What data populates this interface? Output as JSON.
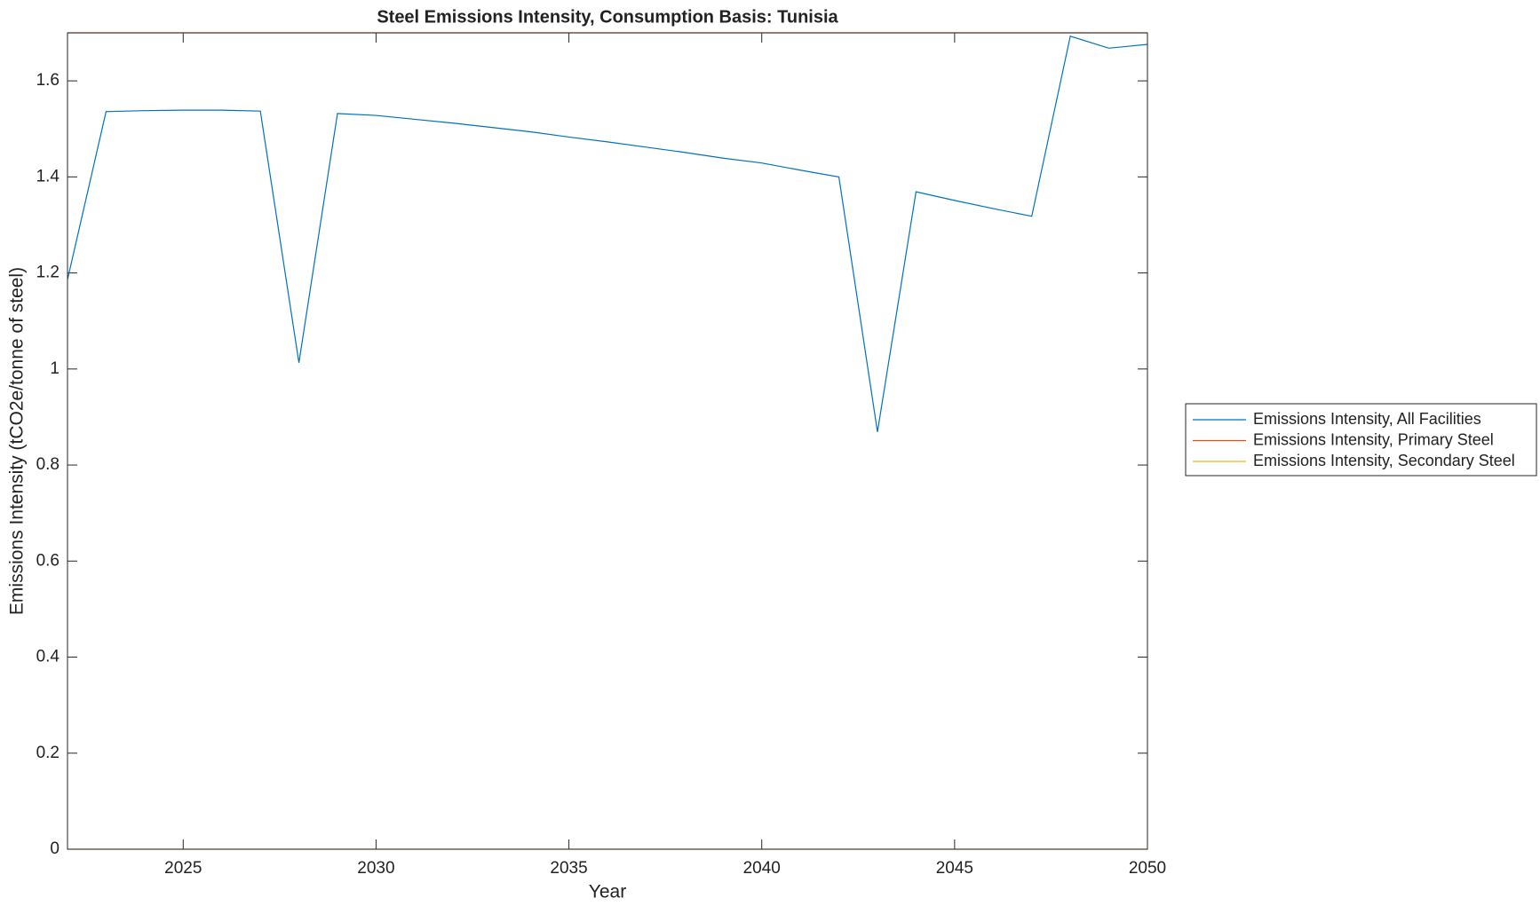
{
  "chart_data": {
    "type": "line",
    "title": "Steel Emissions Intensity, Consumption Basis: Tunisia",
    "xlabel": "Year",
    "ylabel": "Emissions Intensity (tCO2e/tonne of steel)",
    "x": [
      2022,
      2023,
      2024,
      2025,
      2026,
      2027,
      2028,
      2029,
      2030,
      2031,
      2032,
      2033,
      2034,
      2035,
      2036,
      2037,
      2038,
      2039,
      2040,
      2041,
      2042,
      2043,
      2044,
      2045,
      2046,
      2047,
      2048,
      2049,
      2050
    ],
    "series": [
      {
        "name": "Emissions Intensity, All Facilities",
        "color": "#0072bd",
        "values": [
          1.186,
          1.536,
          1.538,
          1.539,
          1.539,
          1.537,
          1.013,
          1.532,
          1.528,
          1.52,
          1.512,
          1.503,
          1.494,
          1.483,
          1.473,
          1.462,
          1.451,
          1.439,
          1.429,
          1.414,
          1.4,
          0.869,
          1.369,
          1.351,
          1.334,
          1.318,
          1.693,
          1.668,
          1.676
        ]
      },
      {
        "name": "Emissions Intensity, Primary Steel",
        "color": "#d95319",
        "values": [
          1.7,
          1.7,
          1.7,
          1.7,
          1.7,
          1.7,
          1.7,
          1.7,
          1.7,
          1.7,
          1.7,
          1.7,
          1.7,
          1.7,
          1.7,
          1.7,
          1.7,
          1.7,
          1.7,
          1.7,
          1.7,
          1.7,
          1.7,
          1.7,
          1.7,
          1.7,
          1.7,
          1.7,
          1.7
        ]
      },
      {
        "name": "Emissions Intensity, Secondary Steel",
        "color": "#edb120",
        "values": [
          0,
          0,
          0,
          0,
          0,
          0,
          0,
          0,
          0,
          0,
          0,
          0,
          0,
          0,
          0,
          0,
          0,
          0,
          0,
          0,
          0,
          0,
          0,
          0,
          0,
          0,
          0,
          0,
          0
        ]
      }
    ],
    "xlim": [
      2022,
      2050
    ],
    "xticks": [
      2025,
      2030,
      2035,
      2040,
      2045,
      2050
    ],
    "ylim": [
      0,
      1.7
    ],
    "yticks": [
      0,
      0.2,
      0.4,
      0.6,
      0.8,
      1,
      1.2,
      1.4,
      1.6
    ],
    "legend": "east-outside"
  }
}
